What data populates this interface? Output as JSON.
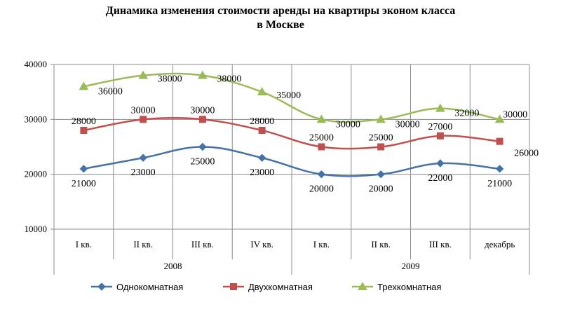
{
  "chart_data": {
    "type": "line",
    "title": "Динамика изменения стоимости аренды  на квартиры эконом класса",
    "subtitle": "в Москве",
    "categories": [
      "I кв.",
      "II кв.",
      "III кв.",
      "IV кв.",
      "I кв.",
      "II кв.",
      "III кв.",
      "декабрь"
    ],
    "groups": [
      {
        "label": "2008",
        "span": [
          0,
          3
        ]
      },
      {
        "label": "2009",
        "span": [
          4,
          7
        ]
      }
    ],
    "ylim": [
      10000,
      40000
    ],
    "yticks": [
      "10000",
      "20000",
      "30000",
      "40000"
    ],
    "smooth": true,
    "legend_position": "bottom",
    "series": [
      {
        "name": "Однокомнатная",
        "color": "#4572A7",
        "marker": "diamond",
        "values": [
          21000,
          23000,
          25000,
          23000,
          20000,
          20000,
          22000,
          21000
        ],
        "labels": [
          "21000",
          "23000",
          "25000",
          "23000",
          "20000",
          "20000",
          "22000",
          "21000"
        ]
      },
      {
        "name": "Двухкомнатная",
        "color": "#C0504D",
        "marker": "square",
        "values": [
          28000,
          30000,
          30000,
          28000,
          25000,
          25000,
          27000,
          26000
        ],
        "labels": [
          "28000",
          "30000",
          "30000",
          "28000",
          "25000",
          "25000",
          "27000",
          "26000"
        ]
      },
      {
        "name": "Трехкомнатная",
        "color": "#9BBB59",
        "marker": "triangle",
        "values": [
          36000,
          38000,
          38000,
          35000,
          30000,
          30000,
          32000,
          30000
        ],
        "labels": [
          "36000",
          "38000",
          "38000",
          "35000",
          "30000",
          "30000",
          "32000",
          "30000"
        ]
      }
    ]
  }
}
